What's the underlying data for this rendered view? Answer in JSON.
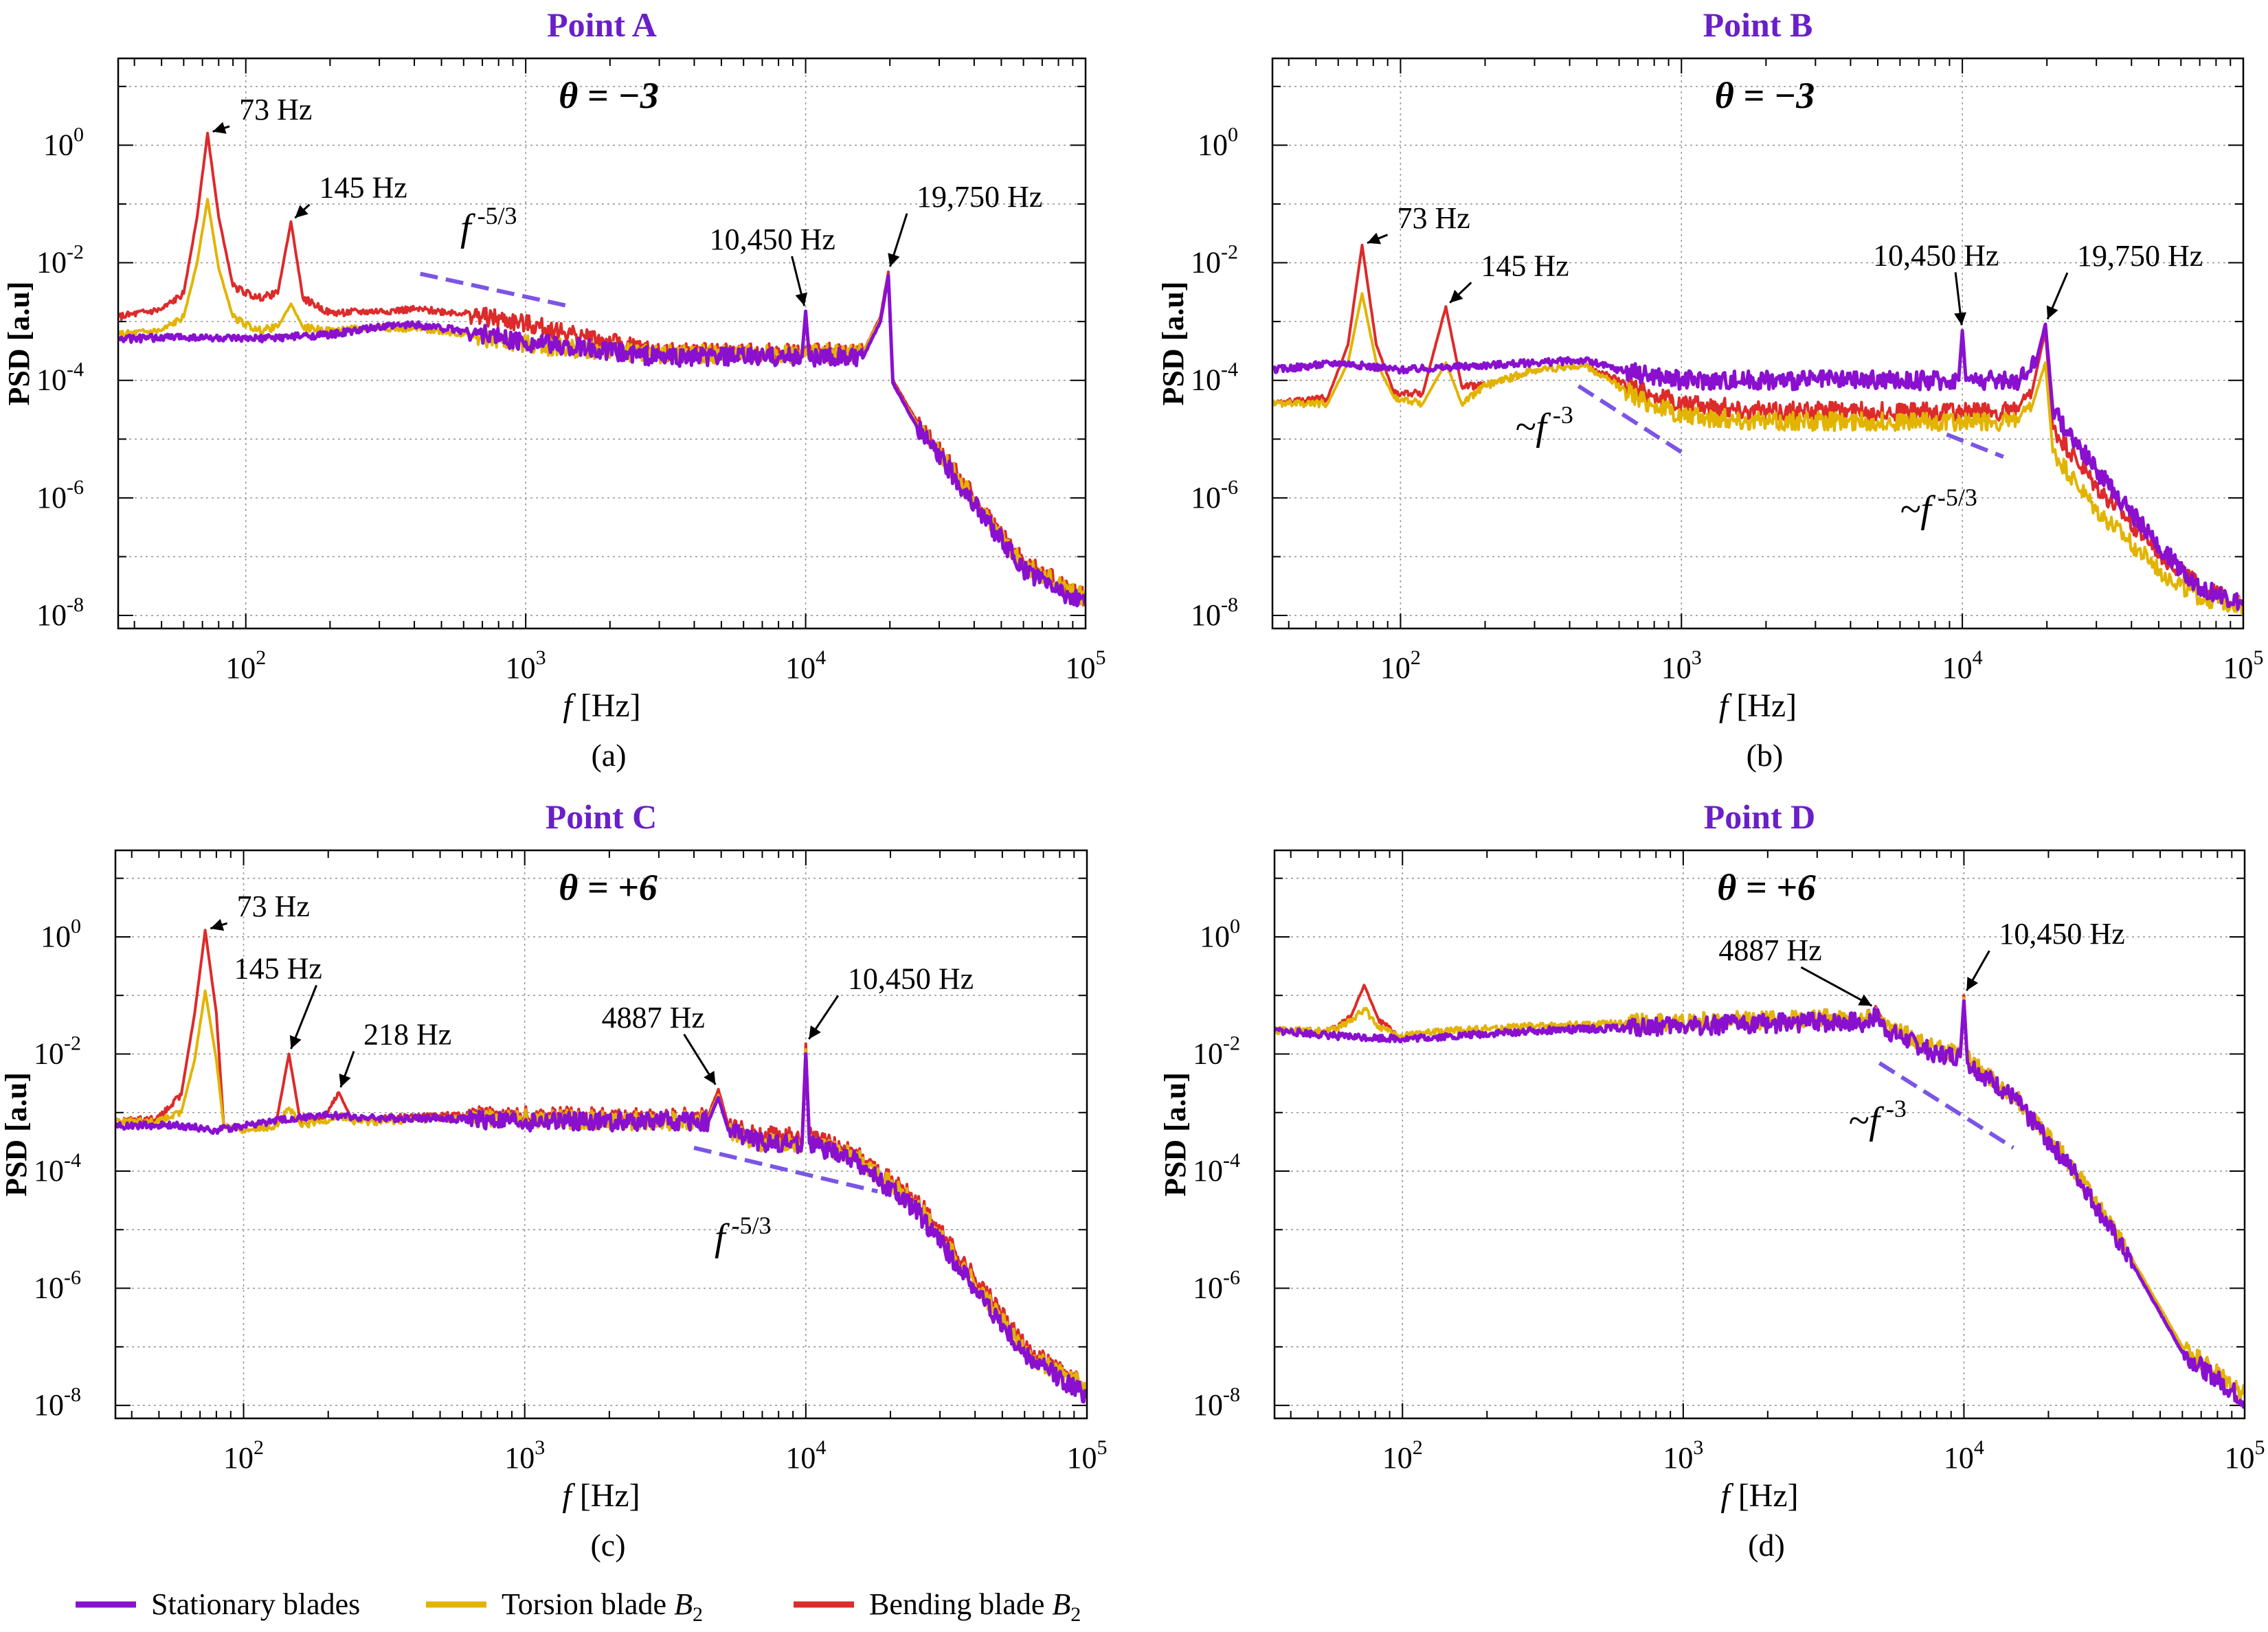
{
  "colors": {
    "stationary": "#8a10d0",
    "torsion": "#e2b400",
    "bending": "#dd2a2a",
    "title": "#6a1fc8",
    "slope": "#7b55e6"
  },
  "legend": [
    {
      "label": "Stationary blades",
      "series": "stationary"
    },
    {
      "label": "Torsion blade B",
      "sub": "2",
      "series": "torsion"
    },
    {
      "label": "Bending blade B",
      "sub": "2",
      "series": "bending"
    }
  ],
  "chart_data": [
    {
      "type": "line",
      "panel_label": "(a)",
      "title": "Point  A",
      "theta": "θ = −3",
      "xlabel": "f [Hz]",
      "ylabel": "PSD [a.u]",
      "xscale": "log",
      "yscale": "log",
      "xlim": [
        35,
        100000
      ],
      "ylim": [
        6e-09,
        30
      ],
      "xticks": [
        "10^2",
        "10^3",
        "10^4",
        "10^5"
      ],
      "yticks": [
        "10^0",
        "10^-2",
        "10^-4",
        "10^-6",
        "10^-8"
      ],
      "grid": true,
      "series": [
        {
          "name": "Bending blade B2",
          "key": "bending",
          "x": [
            35,
            50,
            60,
            67,
            73,
            80,
            90,
            110,
            130,
            145,
            160,
            200,
            300,
            400,
            600,
            1000,
            1500,
            3000,
            10000,
            16000,
            18500,
            19750,
            20500,
            25000,
            40000,
            60000,
            100000
          ],
          "y": [
            0.0012,
            0.0016,
            0.003,
            0.06,
            1.6,
            0.06,
            0.004,
            0.0025,
            0.003,
            0.05,
            0.0025,
            0.0014,
            0.0015,
            0.0016,
            0.0014,
            0.0009,
            0.0006,
            0.0003,
            0.0003,
            0.0003,
            0.0012,
            0.007,
            0.0001,
            2e-05,
            1e-06,
            8e-08,
            2e-08
          ]
        },
        {
          "name": "Torsion blade B2",
          "key": "torsion",
          "x": [
            35,
            50,
            60,
            67,
            73,
            80,
            90,
            110,
            130,
            145,
            160,
            200,
            300,
            500,
            1000,
            3000,
            10000,
            16000,
            18500,
            19750,
            20500,
            25000,
            40000,
            60000,
            100000
          ],
          "y": [
            0.0006,
            0.0007,
            0.0012,
            0.01,
            0.12,
            0.008,
            0.0012,
            0.0007,
            0.0008,
            0.002,
            0.0008,
            0.0007,
            0.0008,
            0.0007,
            0.0004,
            0.00028,
            0.00028,
            0.0003,
            0.0011,
            0.0055,
            9e-05,
            1.8e-05,
            9e-07,
            7e-08,
            2e-08
          ]
        },
        {
          "name": "Stationary blades",
          "key": "stationary",
          "x": [
            35,
            60,
            100,
            200,
            300,
            400,
            600,
            1000,
            3000,
            9700,
            10000,
            10300,
            16000,
            18500,
            19750,
            20500,
            25000,
            40000,
            60000,
            100000
          ],
          "y": [
            0.0005,
            0.00055,
            0.0005,
            0.0006,
            0.0008,
            0.0009,
            0.0007,
            0.00045,
            0.00025,
            0.00025,
            0.0015,
            0.00025,
            0.00024,
            0.001,
            0.006,
            9e-05,
            1.6e-05,
            8e-07,
            6e-08,
            1.5e-08
          ]
        }
      ],
      "annotations": [
        {
          "text": "73 Hz",
          "x": 73,
          "y": 1.6
        },
        {
          "text": "145 Hz",
          "x": 145,
          "y": 0.05
        },
        {
          "text": "10,450 Hz",
          "x": 10000,
          "y": 0.0015
        },
        {
          "text": "19,750 Hz",
          "x": 19750,
          "y": 0.007
        },
        {
          "text": "f",
          "sup": " -5/3",
          "slope_x": [
            420,
            1450
          ],
          "slope_y": [
            0.0065,
            0.0018
          ]
        }
      ]
    },
    {
      "type": "line",
      "panel_label": "(b)",
      "title": "Point  B",
      "theta": "θ = −3",
      "xlabel": "f [Hz]",
      "ylabel": "PSD [a.u]",
      "xscale": "log",
      "yscale": "log",
      "xlim": [
        35,
        100000
      ],
      "ylim": [
        6e-09,
        30
      ],
      "xticks": [
        "10^2",
        "10^3",
        "10^4",
        "10^5"
      ],
      "yticks": [
        "10^0",
        "10^-2",
        "10^-4",
        "10^-6",
        "10^-8"
      ],
      "grid": true,
      "series": [
        {
          "name": "Bending blade B2",
          "key": "bending",
          "x": [
            35,
            55,
            65,
            73,
            82,
            95,
            120,
            145,
            165,
            200,
            300,
            450,
            700,
            1000,
            2000,
            5000,
            10000,
            15000,
            17500,
            19750,
            21000,
            30000,
            50000,
            70000,
            100000
          ],
          "y": [
            4e-05,
            5e-05,
            0.0004,
            0.02,
            0.0004,
            6e-05,
            6e-05,
            0.0018,
            8e-05,
            8e-05,
            0.00015,
            0.00018,
            7e-05,
            4e-05,
            3e-05,
            3e-05,
            3e-05,
            3e-05,
            5e-05,
            0.0007,
            1.5e-05,
            1.5e-06,
            1.2e-07,
            3e-08,
            1.5e-08
          ]
        },
        {
          "name": "Torsion blade B2",
          "key": "torsion",
          "x": [
            35,
            55,
            65,
            73,
            82,
            95,
            120,
            145,
            165,
            200,
            300,
            450,
            700,
            1000,
            2000,
            5000,
            10000,
            15000,
            17500,
            19750,
            21000,
            30000,
            50000,
            70000,
            100000
          ],
          "y": [
            4e-05,
            4e-05,
            0.0002,
            0.003,
            0.0002,
            5e-05,
            4e-05,
            0.0002,
            4e-05,
            8e-05,
            0.00015,
            0.00018,
            5e-05,
            2.5e-05,
            2e-05,
            2e-05,
            2e-05,
            2e-05,
            3e-05,
            0.0002,
            6e-06,
            6e-07,
            6e-08,
            2e-08,
            1.5e-08
          ]
        },
        {
          "name": "Stationary blades",
          "key": "stationary",
          "x": [
            35,
            60,
            100,
            200,
            300,
            450,
            600,
            1000,
            3000,
            9700,
            10000,
            10300,
            16000,
            18500,
            19750,
            21000,
            30000,
            50000,
            70000,
            100000
          ],
          "y": [
            0.00015,
            0.0002,
            0.00015,
            0.00018,
            0.0002,
            0.00022,
            0.00015,
            0.0001,
            0.0001,
            0.0001,
            0.0007,
            0.0001,
            0.0001,
            0.00025,
            0.0009,
            3e-05,
            3e-06,
            1.5e-07,
            3e-08,
            1.5e-08
          ]
        }
      ],
      "annotations": [
        {
          "text": "73 Hz",
          "x": 73,
          "y": 0.02
        },
        {
          "text": "145 Hz",
          "x": 145,
          "y": 0.0018
        },
        {
          "text": "10,450 Hz",
          "x": 10000,
          "y": 0.0007
        },
        {
          "text": "19,750 Hz",
          "x": 19750,
          "y": 0.0009
        },
        {
          "text": "~f",
          "sup": " -3",
          "slope_x": [
            430,
            1000
          ],
          "slope_y": [
            8e-05,
            6e-06
          ]
        },
        {
          "text": "~f",
          "sup": " -5/3",
          "slope_x": [
            8800,
            14000
          ],
          "slope_y": [
            1.2e-05,
            5e-06
          ]
        }
      ]
    },
    {
      "type": "line",
      "panel_label": "(c)",
      "title": "Point  C",
      "theta": "θ = +6",
      "xlabel": "f [Hz]",
      "ylabel": "PSD [a.u]",
      "xscale": "log",
      "yscale": "log",
      "xlim": [
        35,
        100000
      ],
      "ylim": [
        6e-09,
        30
      ],
      "xticks": [
        "10^2",
        "10^3",
        "10^4",
        "10^5"
      ],
      "yticks": [
        "10^0",
        "10^-2",
        "10^-4",
        "10^-6",
        "10^-8"
      ],
      "grid": true,
      "series": [
        {
          "name": "Bending blade B2",
          "key": "bending",
          "x": [
            35,
            50,
            60,
            67,
            73,
            80,
            85,
            100,
            130,
            145,
            160,
            190,
            218,
            245,
            300,
            500,
            1000,
            3000,
            4500,
            4887,
            5300,
            7000,
            9700,
            10000,
            10300,
            15000,
            25000,
            40000,
            60000,
            100000
          ],
          "y": [
            0.0007,
            0.0008,
            0.002,
            0.05,
            1.3,
            0.05,
            0.0006,
            0.0005,
            0.0006,
            0.01,
            0.0006,
            0.0008,
            0.0022,
            0.0007,
            0.0008,
            0.0009,
            0.0009,
            0.0008,
            0.0009,
            0.0025,
            0.0006,
            0.0004,
            0.0004,
            0.015,
            0.0004,
            0.0002,
            3e-05,
            1.5e-06,
            1e-07,
            2e-08
          ]
        },
        {
          "name": "Torsion blade B2",
          "key": "torsion",
          "x": [
            35,
            50,
            60,
            67,
            73,
            80,
            85,
            100,
            130,
            145,
            160,
            190,
            218,
            245,
            300,
            500,
            1000,
            3000,
            4500,
            4887,
            5300,
            7000,
            9700,
            10000,
            10300,
            15000,
            25000,
            40000,
            60000,
            100000
          ],
          "y": [
            0.0007,
            0.0007,
            0.001,
            0.008,
            0.12,
            0.008,
            0.0006,
            0.0005,
            0.0006,
            0.0012,
            0.0006,
            0.0007,
            0.0009,
            0.0007,
            0.0007,
            0.0008,
            0.0008,
            0.0007,
            0.0008,
            0.002,
            0.0005,
            0.0003,
            0.0003,
            0.012,
            0.0003,
            0.00018,
            2.5e-05,
            1.2e-06,
            8e-08,
            2e-08
          ]
        },
        {
          "name": "Stationary blades",
          "key": "stationary",
          "x": [
            35,
            60,
            80,
            100,
            150,
            200,
            300,
            500,
            1000,
            3000,
            4500,
            4887,
            5300,
            7000,
            9700,
            10000,
            10300,
            15000,
            25000,
            40000,
            60000,
            100000
          ],
          "y": [
            0.0006,
            0.0006,
            0.0005,
            0.0006,
            0.0008,
            0.0009,
            0.0008,
            0.0008,
            0.0007,
            0.0007,
            0.0007,
            0.0018,
            0.0005,
            0.0003,
            0.0003,
            0.01,
            0.0003,
            0.00015,
            2e-05,
            1e-06,
            7e-08,
            1.5e-08
          ]
        }
      ],
      "annotations": [
        {
          "text": "73 Hz",
          "x": 73,
          "y": 1.3
        },
        {
          "text": "145 Hz",
          "x": 145,
          "y": 0.01
        },
        {
          "text": "218 Hz",
          "x": 218,
          "y": 0.0022
        },
        {
          "text": "4887 Hz",
          "x": 4887,
          "y": 0.0025
        },
        {
          "text": "10,450 Hz",
          "x": 10000,
          "y": 0.015
        },
        {
          "text": "f",
          "sup": " -5/3",
          "slope_x": [
            4000,
            18000
          ],
          "slope_y": [
            0.00025,
            4.5e-05
          ]
        }
      ]
    },
    {
      "type": "line",
      "panel_label": "(d)",
      "title": "Point  D",
      "theta": "θ = +6",
      "xlabel": "f [Hz]",
      "ylabel": "PSD [a.u]",
      "xscale": "log",
      "yscale": "log",
      "xlim": [
        35,
        100000
      ],
      "ylim": [
        6e-09,
        30
      ],
      "xticks": [
        "10^2",
        "10^3",
        "10^4",
        "10^5"
      ],
      "yticks": [
        "10^0",
        "10^-2",
        "10^-4",
        "10^-6",
        "10^-8"
      ],
      "grid": true,
      "series": [
        {
          "name": "Bending blade B2",
          "key": "bending",
          "x": [
            35,
            55,
            65,
            73,
            82,
            95,
            150,
            300,
            1000,
            3000,
            4500,
            4887,
            5300,
            8000,
            9700,
            10000,
            10300,
            15000,
            25000,
            40000,
            60000,
            100000
          ],
          "y": [
            0.025,
            0.025,
            0.04,
            0.15,
            0.04,
            0.02,
            0.025,
            0.03,
            0.035,
            0.04,
            0.04,
            0.06,
            0.03,
            0.012,
            0.01,
            0.1,
            0.008,
            0.002,
            0.0001,
            3e-06,
            1e-07,
            1.5e-08
          ]
        },
        {
          "name": "Torsion blade B2",
          "key": "torsion",
          "x": [
            35,
            55,
            65,
            73,
            82,
            95,
            150,
            300,
            1000,
            3000,
            4500,
            4887,
            5300,
            8000,
            9700,
            10000,
            10300,
            15000,
            25000,
            40000,
            60000,
            100000
          ],
          "y": [
            0.025,
            0.025,
            0.035,
            0.06,
            0.03,
            0.02,
            0.025,
            0.03,
            0.035,
            0.04,
            0.04,
            0.055,
            0.03,
            0.012,
            0.01,
            0.09,
            0.008,
            0.002,
            0.0001,
            3e-06,
            1e-07,
            1.5e-08
          ]
        },
        {
          "name": "Stationary blades",
          "key": "stationary",
          "x": [
            35,
            60,
            100,
            150,
            300,
            1000,
            3000,
            4500,
            4887,
            5300,
            8000,
            9700,
            10000,
            10300,
            15000,
            25000,
            40000,
            60000,
            100000
          ],
          "y": [
            0.025,
            0.02,
            0.018,
            0.02,
            0.025,
            0.03,
            0.035,
            0.035,
            0.045,
            0.025,
            0.01,
            0.009,
            0.08,
            0.007,
            0.0018,
            9e-05,
            2.5e-06,
            8e-08,
            1.2e-08
          ]
        }
      ],
      "annotations": [
        {
          "text": "4887 Hz",
          "x": 4887,
          "y": 0.06
        },
        {
          "text": "10,450 Hz",
          "x": 10000,
          "y": 0.1
        },
        {
          "text": "~f",
          "sup": " -3",
          "slope_x": [
            5000,
            15000
          ],
          "slope_y": [
            0.007,
            0.00025
          ]
        }
      ]
    }
  ]
}
